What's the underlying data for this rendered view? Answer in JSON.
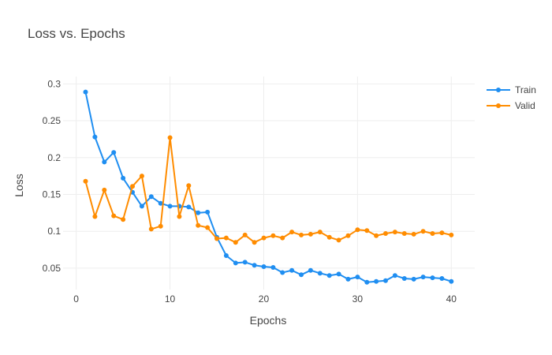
{
  "chart_data": {
    "type": "line",
    "title": "Loss vs. Epochs",
    "xlabel": "Epochs",
    "ylabel": "Loss",
    "xlim": [
      -1.4,
      42.5
    ],
    "ylim": [
      0.021,
      0.31
    ],
    "x_ticks": [
      0,
      10,
      20,
      30,
      40
    ],
    "y_ticks": [
      0.05,
      0.1,
      0.15,
      0.2,
      0.25,
      0.3
    ],
    "grid": true,
    "legend_position": "top-right",
    "x": [
      1,
      2,
      3,
      4,
      5,
      6,
      7,
      8,
      9,
      10,
      11,
      12,
      13,
      14,
      15,
      16,
      17,
      18,
      19,
      20,
      21,
      22,
      23,
      24,
      25,
      26,
      27,
      28,
      29,
      30,
      31,
      32,
      33,
      34,
      35,
      36,
      37,
      38,
      39,
      40
    ],
    "series": [
      {
        "name": "Train",
        "color": "#1f8ef1",
        "values": [
          0.289,
          0.228,
          0.194,
          0.207,
          0.172,
          0.153,
          0.134,
          0.147,
          0.138,
          0.134,
          0.134,
          0.133,
          0.125,
          0.126,
          0.092,
          0.067,
          0.057,
          0.058,
          0.054,
          0.052,
          0.051,
          0.044,
          0.047,
          0.041,
          0.047,
          0.043,
          0.04,
          0.042,
          0.035,
          0.038,
          0.031,
          0.032,
          0.033,
          0.04,
          0.036,
          0.035,
          0.038,
          0.037,
          0.036,
          0.032
        ]
      },
      {
        "name": "Valid",
        "color": "#ff8c00",
        "values": [
          0.168,
          0.12,
          0.156,
          0.121,
          0.116,
          0.161,
          0.175,
          0.103,
          0.107,
          0.227,
          0.12,
          0.162,
          0.108,
          0.105,
          0.09,
          0.091,
          0.085,
          0.095,
          0.085,
          0.091,
          0.094,
          0.091,
          0.099,
          0.095,
          0.096,
          0.099,
          0.092,
          0.088,
          0.094,
          0.102,
          0.101,
          0.094,
          0.097,
          0.099,
          0.097,
          0.096,
          0.1,
          0.097,
          0.098,
          0.095
        ]
      }
    ]
  }
}
